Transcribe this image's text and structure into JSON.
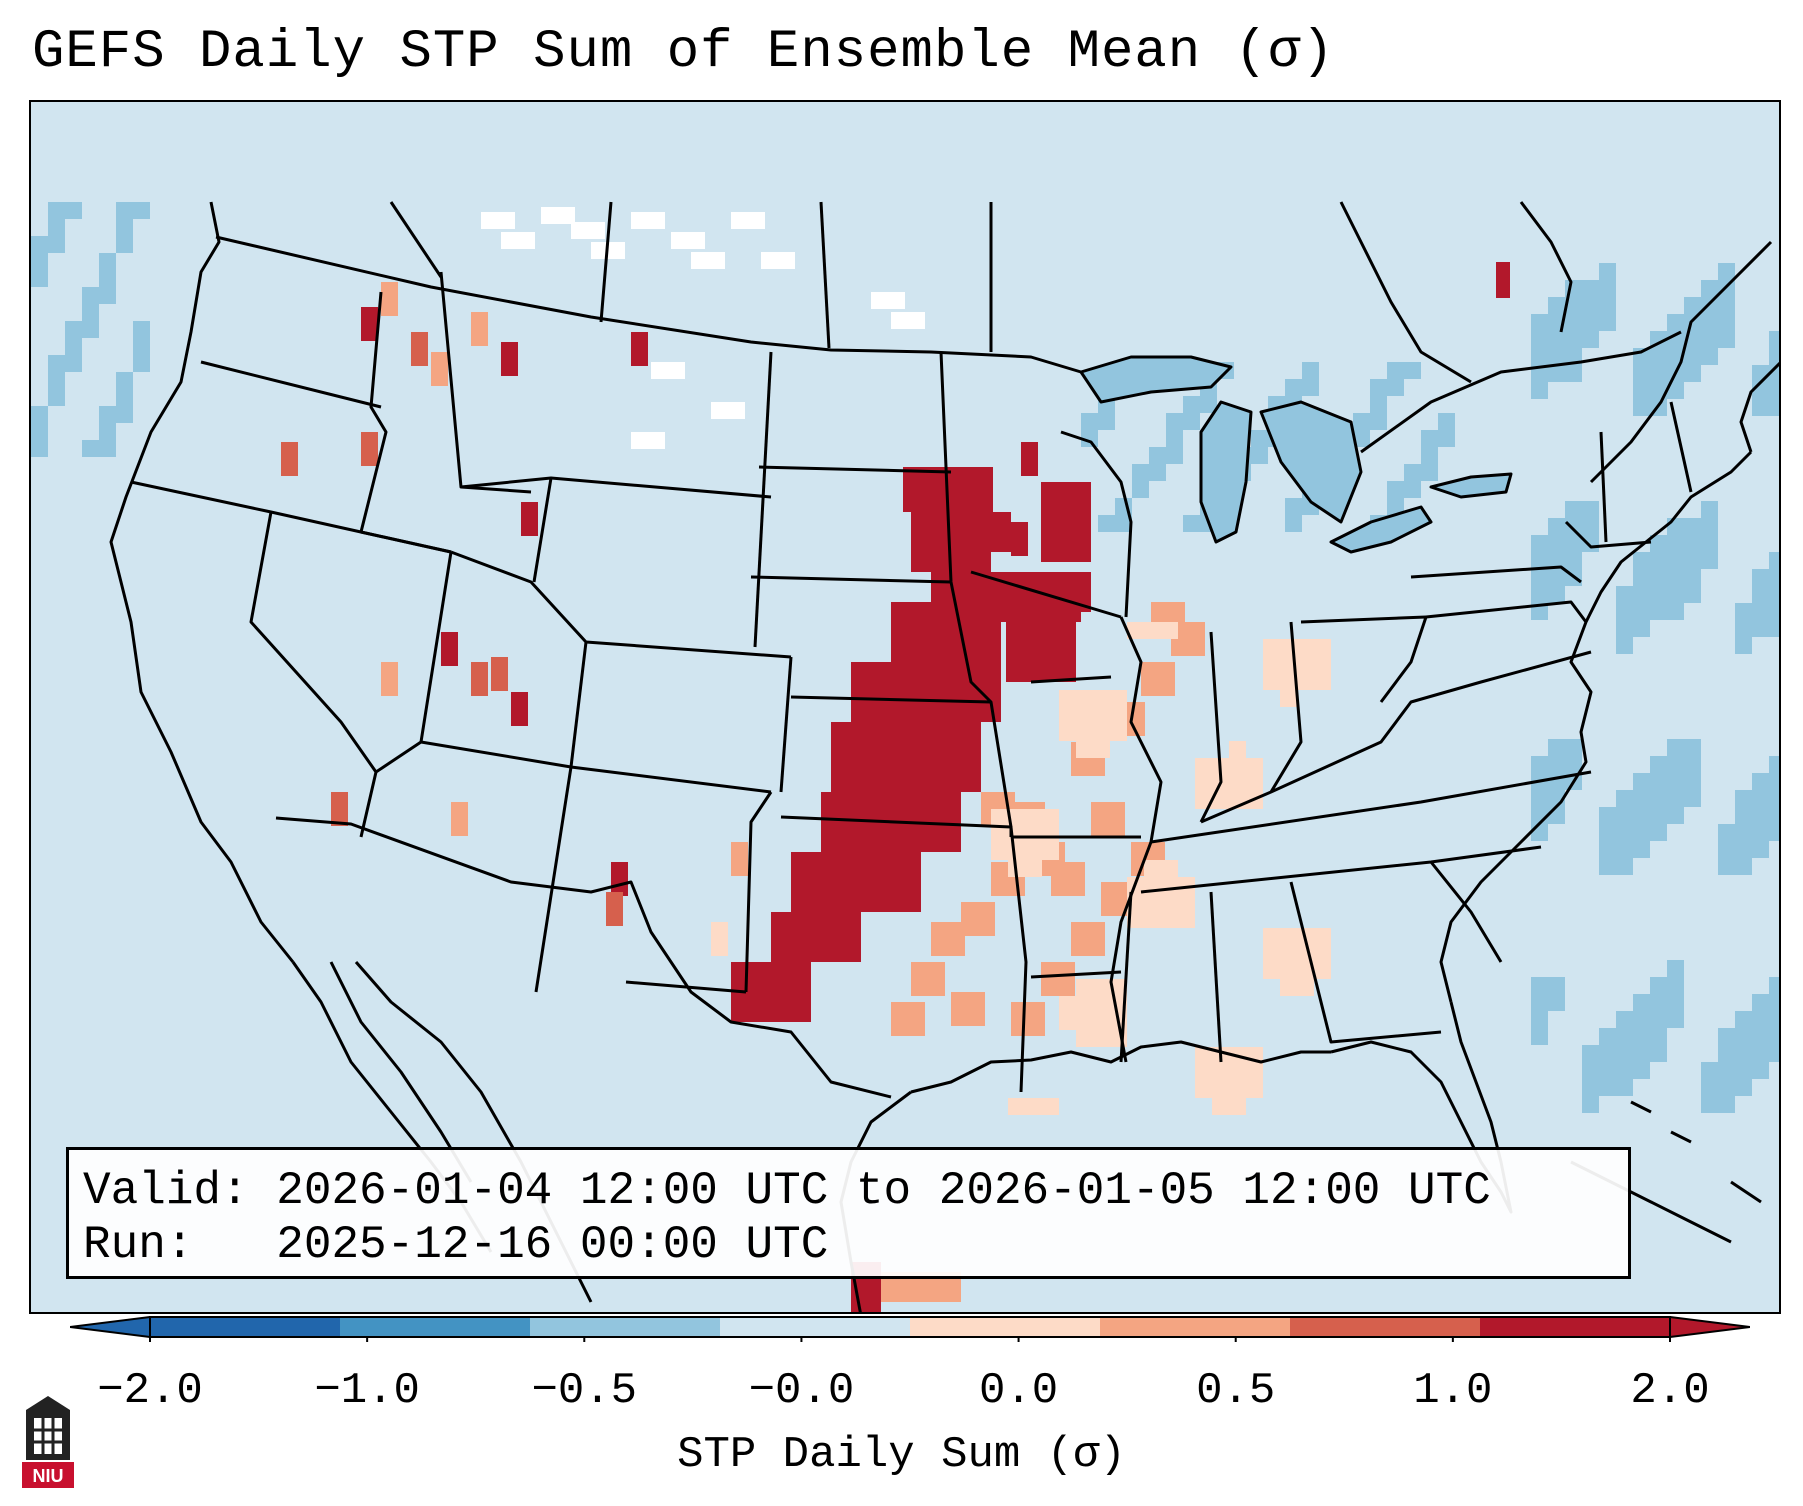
{
  "title": "GEFS Daily STP Sum of Ensemble Mean (σ)",
  "info": {
    "valid_line": "Valid: 2026-01-04 12:00 UTC to 2026-01-05 12:00 UTC",
    "run_line": "Run:   2025-12-16 00:00 UTC"
  },
  "colorbar": {
    "label": "STP Daily Sum (σ)",
    "ticks": [
      "−2.0",
      "−1.0",
      "−0.5",
      "−0.0",
      "0.0",
      "0.5",
      "1.0",
      "2.0"
    ],
    "colors": [
      "#2166ac",
      "#4393c3",
      "#92c5de",
      "#d1e5f0",
      "#fddbc7",
      "#f4a582",
      "#d6604d",
      "#b2182b"
    ]
  },
  "logo_text": "NIU",
  "colors": {
    "ocean_background": "#d1e5f0",
    "max_anomaly": "#b2182b",
    "high_anomaly": "#d6604d",
    "mid_anomaly": "#f4a582",
    "low_anomaly": "#fddbc7",
    "neg_anomaly": "#92c5de",
    "null_cells": "#ffffff"
  }
}
